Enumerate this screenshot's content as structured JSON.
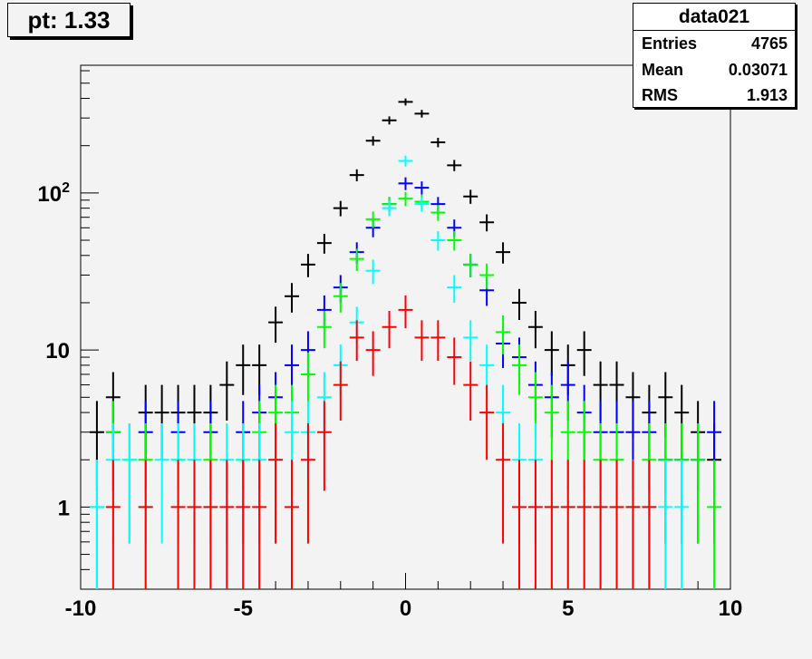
{
  "title": "pt: 1.33",
  "stats": {
    "name": "data021",
    "rows": [
      {
        "label": "Entries",
        "value": "4765"
      },
      {
        "label": "Mean",
        "value": "0.03071"
      },
      {
        "label": "RMS",
        "value": "1.913"
      }
    ]
  },
  "chart_data": {
    "type": "scatter",
    "title": "pt: 1.33",
    "xlabel": "",
    "ylabel": "",
    "xlim": [
      -10,
      10
    ],
    "ylim": [
      0.3,
      650
    ],
    "y_scale": "log",
    "grid": false,
    "bin_width": 0.5,
    "x_ticks": [
      {
        "value": -10,
        "label": "-10"
      },
      {
        "value": -5,
        "label": "-5"
      },
      {
        "value": 0,
        "label": "0"
      },
      {
        "value": 5,
        "label": "5"
      },
      {
        "value": 10,
        "label": "10"
      }
    ],
    "y_ticks": [
      {
        "value": 1,
        "label": "1"
      },
      {
        "value": 10,
        "label": "10"
      },
      {
        "value": 100,
        "label": "10",
        "sup": "2"
      }
    ],
    "series": [
      {
        "color": "#000000",
        "points": [
          [
            -9.5,
            3
          ],
          [
            -9,
            5
          ],
          [
            -8,
            4
          ],
          [
            -7.5,
            4
          ],
          [
            -7,
            4
          ],
          [
            -6.5,
            4
          ],
          [
            -6,
            4
          ],
          [
            -5.5,
            6
          ],
          [
            -5,
            8
          ],
          [
            -4.5,
            8
          ],
          [
            -4,
            15
          ],
          [
            -3.5,
            22
          ],
          [
            -3,
            35
          ],
          [
            -2.5,
            48
          ],
          [
            -2,
            80
          ],
          [
            -1.5,
            130
          ],
          [
            -1,
            215
          ],
          [
            -0.5,
            290
          ],
          [
            0,
            380
          ],
          [
            0.5,
            320
          ],
          [
            1,
            210
          ],
          [
            1.5,
            150
          ],
          [
            2,
            95
          ],
          [
            2.5,
            65
          ],
          [
            3,
            42
          ],
          [
            3.5,
            20
          ],
          [
            4,
            14
          ],
          [
            4.5,
            10
          ],
          [
            5,
            8
          ],
          [
            5.5,
            10
          ],
          [
            6,
            6
          ],
          [
            6.5,
            6
          ],
          [
            7,
            5
          ],
          [
            7.5,
            4
          ],
          [
            8,
            5
          ],
          [
            8.5,
            4
          ],
          [
            9,
            3
          ],
          [
            9.5,
            2
          ]
        ]
      },
      {
        "color": "#0000ff",
        "points": [
          [
            -9,
            3
          ],
          [
            -8,
            3
          ],
          [
            -7,
            3
          ],
          [
            -6,
            3
          ],
          [
            -5,
            3
          ],
          [
            -4.5,
            4
          ],
          [
            -4,
            5
          ],
          [
            -3.5,
            8
          ],
          [
            -3,
            10
          ],
          [
            -2.5,
            18
          ],
          [
            -2,
            25
          ],
          [
            -1.5,
            42
          ],
          [
            -1,
            60
          ],
          [
            -0.5,
            85
          ],
          [
            0,
            115
          ],
          [
            0.5,
            108
          ],
          [
            1,
            85
          ],
          [
            1.5,
            60
          ],
          [
            2,
            35
          ],
          [
            2.5,
            24
          ],
          [
            3,
            11
          ],
          [
            3.5,
            9
          ],
          [
            4,
            6
          ],
          [
            4.5,
            5
          ],
          [
            5,
            6
          ],
          [
            5.5,
            4
          ],
          [
            6,
            3
          ],
          [
            6.5,
            3
          ],
          [
            7,
            3
          ],
          [
            7.5,
            3
          ],
          [
            8,
            2
          ],
          [
            8.5,
            2
          ],
          [
            9,
            2
          ],
          [
            9.5,
            3
          ]
        ]
      },
      {
        "color": "#00ff00",
        "points": [
          [
            -9.5,
            1
          ],
          [
            -9,
            3
          ],
          [
            -8.5,
            2
          ],
          [
            -8,
            2
          ],
          [
            -7,
            2
          ],
          [
            -6,
            2
          ],
          [
            -5,
            2
          ],
          [
            -4.5,
            3
          ],
          [
            -4,
            4
          ],
          [
            -3.5,
            4
          ],
          [
            -3,
            7
          ],
          [
            -2.5,
            14
          ],
          [
            -2,
            22
          ],
          [
            -1.5,
            38
          ],
          [
            -1,
            68
          ],
          [
            -0.5,
            85
          ],
          [
            0,
            92
          ],
          [
            0.5,
            88
          ],
          [
            1,
            75
          ],
          [
            1.5,
            50
          ],
          [
            2,
            35
          ],
          [
            2.5,
            30
          ],
          [
            3,
            13
          ],
          [
            3.5,
            8
          ],
          [
            4,
            5
          ],
          [
            4.5,
            4
          ],
          [
            5,
            3
          ],
          [
            5.5,
            3
          ],
          [
            6,
            2
          ],
          [
            6.5,
            2
          ],
          [
            7,
            1
          ],
          [
            7.5,
            2
          ],
          [
            8,
            2
          ],
          [
            8.5,
            2
          ],
          [
            9,
            2
          ],
          [
            9.5,
            1
          ]
        ]
      },
      {
        "color": "#00ffff",
        "points": [
          [
            -9.5,
            1
          ],
          [
            -9,
            2
          ],
          [
            -8.5,
            2
          ],
          [
            -8,
            1
          ],
          [
            -7.5,
            2
          ],
          [
            -7,
            2
          ],
          [
            -6.5,
            2
          ],
          [
            -6,
            1
          ],
          [
            -5.5,
            2
          ],
          [
            -5,
            2
          ],
          [
            -4.5,
            2
          ],
          [
            -4,
            2
          ],
          [
            -3.5,
            3
          ],
          [
            -3,
            3
          ],
          [
            -2.5,
            5
          ],
          [
            -2,
            8
          ],
          [
            -1.5,
            15
          ],
          [
            -1,
            32
          ],
          [
            -0.5,
            80
          ],
          [
            0,
            160
          ],
          [
            0.5,
            85
          ],
          [
            1,
            50
          ],
          [
            1.5,
            25
          ],
          [
            2,
            12
          ],
          [
            2.5,
            8
          ],
          [
            3,
            4
          ],
          [
            3.5,
            2
          ],
          [
            4,
            2
          ],
          [
            4.5,
            1
          ],
          [
            5,
            1
          ],
          [
            5.5,
            1
          ],
          [
            6,
            1
          ],
          [
            6.5,
            1
          ],
          [
            7,
            1
          ],
          [
            7.5,
            1
          ],
          [
            8,
            1
          ],
          [
            8.5,
            1
          ]
        ]
      },
      {
        "color": "#ff0000",
        "points": [
          [
            -9,
            1
          ],
          [
            -8,
            1
          ],
          [
            -7,
            1
          ],
          [
            -6.5,
            1
          ],
          [
            -6,
            1
          ],
          [
            -5.5,
            1
          ],
          [
            -5,
            1
          ],
          [
            -4.5,
            1
          ],
          [
            -4,
            2
          ],
          [
            -3.5,
            1
          ],
          [
            -3,
            2
          ],
          [
            -2.5,
            3
          ],
          [
            -2,
            6
          ],
          [
            -1.5,
            12
          ],
          [
            -1,
            10
          ],
          [
            -0.5,
            14
          ],
          [
            0,
            18
          ],
          [
            0.5,
            12
          ],
          [
            1,
            12
          ],
          [
            1.5,
            9
          ],
          [
            2,
            6
          ],
          [
            2.5,
            4
          ],
          [
            3,
            2
          ],
          [
            3.5,
            1
          ],
          [
            4,
            1
          ],
          [
            4.5,
            1
          ],
          [
            5,
            1
          ],
          [
            5.5,
            1
          ],
          [
            6,
            1
          ],
          [
            6.5,
            1
          ],
          [
            7,
            1
          ],
          [
            7.5,
            1
          ]
        ]
      }
    ]
  }
}
